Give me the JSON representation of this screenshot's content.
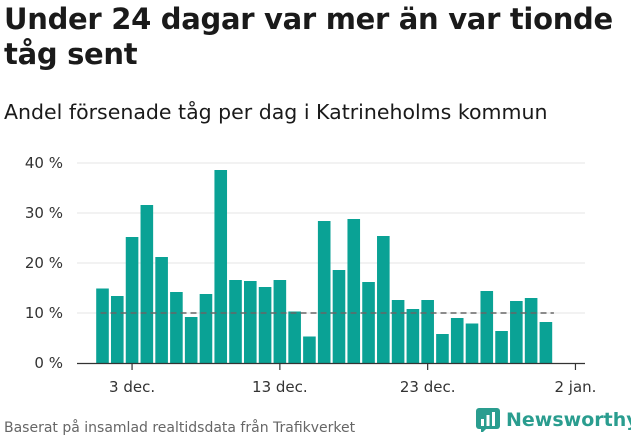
{
  "header": {
    "title": "Under 24 dagar var mer än var tionde tåg sent",
    "subtitle": "Andel försenade tåg per dag i Katrineholms kommun"
  },
  "footer": {
    "source": "Baserat på insamlad realtidsdata från Trafikverket",
    "brand": "Newsworthy"
  },
  "colors": {
    "bar": "#0aa295",
    "reference": "#666666",
    "brand": "#2a9d8f"
  },
  "chart_data": {
    "type": "bar",
    "title": "",
    "xlabel": "",
    "ylabel": "",
    "ylim": [
      0,
      40
    ],
    "yticks": [
      0,
      10,
      20,
      30,
      40
    ],
    "ytick_labels": [
      "0 %",
      "10 %",
      "20 %",
      "30 %",
      "40 %"
    ],
    "xtick_labels": [
      {
        "index": 2,
        "label": "3 dec."
      },
      {
        "index": 12,
        "label": "13 dec."
      },
      {
        "index": 22,
        "label": "23 dec."
      },
      {
        "index": 32,
        "label": "2 jan."
      }
    ],
    "categories": [
      "1 dec.",
      "2 dec.",
      "3 dec.",
      "4 dec.",
      "5 dec.",
      "6 dec.",
      "7 dec.",
      "8 dec.",
      "9 dec.",
      "10 dec.",
      "11 dec.",
      "12 dec.",
      "13 dec.",
      "14 dec.",
      "15 dec.",
      "16 dec.",
      "17 dec.",
      "18 dec.",
      "19 dec.",
      "20 dec.",
      "21 dec.",
      "22 dec.",
      "23 dec.",
      "24 dec.",
      "25 dec.",
      "26 dec.",
      "27 dec.",
      "28 dec.",
      "29 dec.",
      "30 dec.",
      "31 dec."
    ],
    "values": [
      14.9,
      13.4,
      25.2,
      31.6,
      21.2,
      14.2,
      9.2,
      13.8,
      38.6,
      16.6,
      16.4,
      15.2,
      16.6,
      10.3,
      5.3,
      28.4,
      18.6,
      28.8,
      16.2,
      25.4,
      12.6,
      10.8,
      12.6,
      5.8,
      9.0,
      7.9,
      14.4,
      6.4,
      12.4,
      13.0,
      8.2
    ],
    "reference_line": 10,
    "grid": true
  }
}
